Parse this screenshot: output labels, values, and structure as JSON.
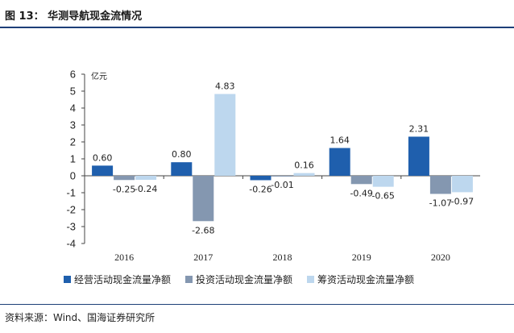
{
  "header": {
    "title": "图 13：  华测导航现金流情况"
  },
  "footer": {
    "source": "资料来源：Wind、国海证券研究所"
  },
  "chart_data": {
    "type": "bar",
    "title": "华测导航现金流情况",
    "unit_label": "亿元",
    "xlabel": "",
    "ylabel": "亿元",
    "ylim": [
      -4,
      6
    ],
    "yticks": [
      6,
      5,
      4,
      3,
      2,
      1,
      0,
      -1,
      -2,
      -3,
      -4
    ],
    "categories": [
      "2016",
      "2017",
      "2018",
      "2019",
      "2020"
    ],
    "legend_position": "bottom",
    "series": [
      {
        "name": "经营活动现金流量净额",
        "color": "#1f5fad",
        "values": [
          0.6,
          0.8,
          -0.26,
          1.64,
          2.31
        ],
        "labels": [
          "0.60",
          "0.80",
          "-0.26",
          "1.64",
          "2.31"
        ]
      },
      {
        "name": "投资活动现金流量净额",
        "color": "#8497b0",
        "values": [
          -0.25,
          -2.68,
          -0.01,
          -0.49,
          -1.07
        ],
        "labels": [
          "-0.25",
          "-2.68",
          "-0.01",
          "-0.49",
          "-1.07"
        ]
      },
      {
        "name": "筹资活动现金流量净额",
        "color": "#bdd7ee",
        "values": [
          -0.24,
          4.83,
          0.16,
          -0.65,
          -0.97
        ],
        "labels": [
          "-0.24",
          "4.83",
          "0.16",
          "-0.65",
          "-0.97"
        ]
      }
    ]
  }
}
